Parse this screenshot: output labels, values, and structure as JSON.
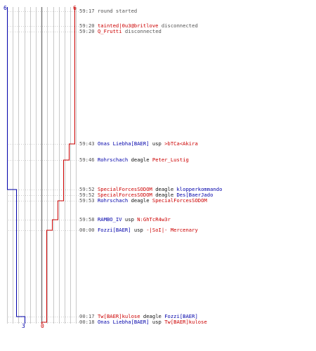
{
  "colors": {
    "t_team": "#cc0000",
    "ct_team": "#0000aa",
    "grid": "#c8c8c8",
    "axis": "#777777",
    "text": "#555555"
  },
  "scores": {
    "ct_start": "6",
    "t_start": "6",
    "ct_end": "3",
    "t_end": "0"
  },
  "events": [
    {
      "ts": "59:17",
      "text": "round started"
    },
    {
      "ts": "59:20",
      "player": "tainted|0u3@britlove",
      "team": "t",
      "text": "disconnected"
    },
    {
      "ts": "59:20",
      "player": "Q_Frutti",
      "team": "t",
      "text": "disconnected"
    },
    {
      "ts": "59:43",
      "killer": "Onas Liebha[BAER]",
      "killer_team": "ct",
      "weapon": "usp",
      "victim": ">bTCa<Akira",
      "victim_team": "t"
    },
    {
      "ts": "59:46",
      "killer": "Rohrschach",
      "killer_team": "ct",
      "weapon": "deagle",
      "victim": "Peter_Lustig",
      "victim_team": "t"
    },
    {
      "ts": "59:52",
      "killer": "SpecialForcesSODOM",
      "killer_team": "t",
      "weapon": "deagle",
      "victim": "klopperkommando",
      "victim_team": "ct"
    },
    {
      "ts": "59:52",
      "killer": "SpecialForcesSODOM",
      "killer_team": "t",
      "weapon": "deagle",
      "victim": "Des[BaerJado",
      "victim_team": "ct"
    },
    {
      "ts": "59:53",
      "killer": "Rohrschach",
      "killer_team": "ct",
      "weapon": "deagle",
      "victim": "SpecialForcesSODOM",
      "victim_team": "t"
    },
    {
      "ts": "59:58",
      "killer": "RAMBO_IV",
      "killer_team": "ct",
      "weapon": "usp",
      "victim": "N:GhTcR4w3r",
      "victim_team": "t"
    },
    {
      "ts": "00:00",
      "killer": "Fozzi[BAER]",
      "killer_team": "ct",
      "weapon": "usp",
      "victim": "-|SoI|- Mercenary",
      "victim_team": "t"
    },
    {
      "ts": "00:17",
      "killer": "Tw[BAER]kulose",
      "killer_team": "t",
      "weapon": "deagle",
      "victim": "Fozzi[BAER]",
      "victim_team": "ct"
    },
    {
      "ts": "00:18",
      "killer": "Onas Liebha[BAER]",
      "killer_team": "ct",
      "weapon": "usp",
      "victim": "Tw[BAER]kulose",
      "victim_team": "t"
    }
  ]
}
